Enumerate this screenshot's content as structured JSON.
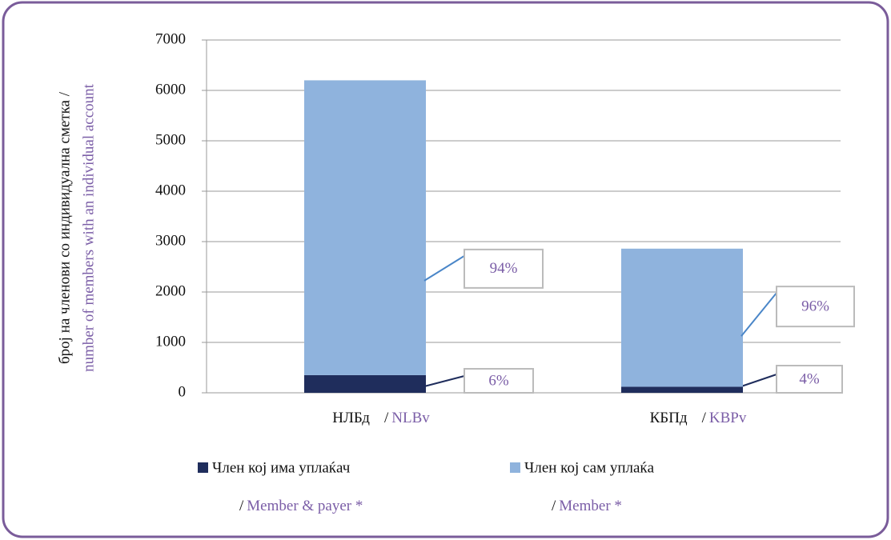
{
  "chart_data": {
    "type": "stacked_bar",
    "ylabel": [
      "број на членови со индивидуална сметка /",
      "number of members with an individual account"
    ],
    "categories": [
      "НЛБд",
      "КБПд"
    ],
    "categories_en": [
      "NLBv",
      "KBPv"
    ],
    "separator": "/",
    "series": [
      {
        "name": "Член кој има уплаќач",
        "name_en": "Member & payer *",
        "color": "#1f2d5c",
        "values": [
          350,
          120
        ],
        "share_labels": [
          "6%",
          "4%"
        ]
      },
      {
        "name": "Член кој сам уплаќа",
        "name_en": "Member *",
        "color": "#8fb3dd",
        "values": [
          5850,
          2740
        ],
        "share_labels": [
          "94%",
          "96%"
        ]
      }
    ],
    "ylim": [
      0,
      7000
    ],
    "yticks": [
      0,
      1000,
      2000,
      3000,
      4000,
      5000,
      6000,
      7000
    ],
    "grid": true
  }
}
